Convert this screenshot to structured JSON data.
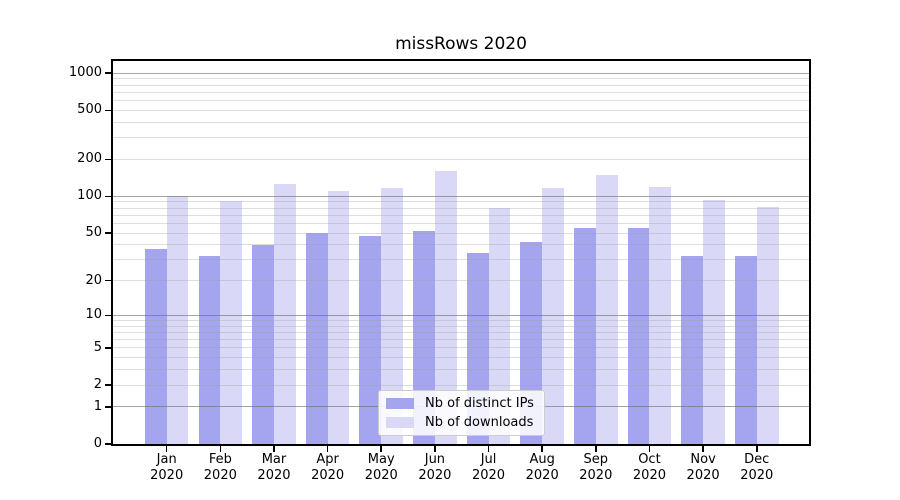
{
  "chart_data": {
    "type": "bar",
    "title": "missRows 2020",
    "categories": [
      "Jan",
      "Feb",
      "Mar",
      "Apr",
      "May",
      "Jun",
      "Jul",
      "Aug",
      "Sep",
      "Oct",
      "Nov",
      "Dec"
    ],
    "category_year": "2020",
    "series": [
      {
        "name": "Nb of distinct IPs",
        "color": "#a5a5ef",
        "values": [
          37,
          32,
          40,
          50,
          47,
          52,
          34,
          42,
          55,
          55,
          32,
          32
        ]
      },
      {
        "name": "Nb of downloads",
        "color": "#d9d9f7",
        "values": [
          101,
          92,
          127,
          110,
          117,
          162,
          80,
          116,
          149,
          119,
          93,
          82
        ]
      }
    ],
    "y_ticks": [
      1000,
      500,
      200,
      100,
      50,
      20,
      10,
      5,
      2,
      1,
      0
    ],
    "y_major_gridlines": [
      1,
      10,
      100,
      1000
    ],
    "scale": "symlog-log1p",
    "ylim": [
      0,
      1280
    ],
    "xlabel": "",
    "ylabel": "",
    "grid": "on",
    "legend_position": "inside-bottom-center",
    "axis_color": "#000000",
    "background_color": "#ffffff"
  }
}
